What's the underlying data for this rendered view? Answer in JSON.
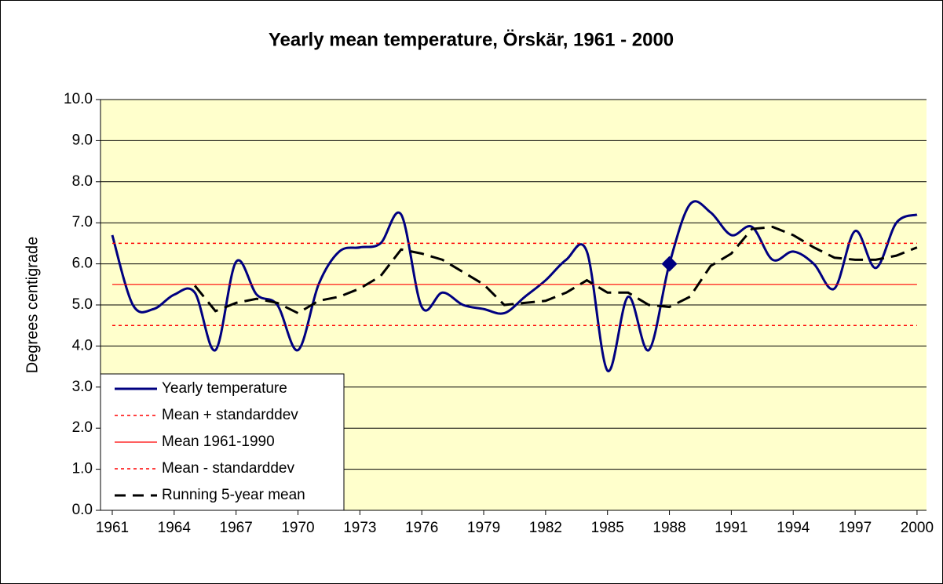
{
  "chart_data": {
    "type": "line",
    "title": "Yearly mean temperature, Örskär, 1961 - 2000",
    "y_label": "Degrees centigrade",
    "x": [
      1961,
      1962,
      1963,
      1964,
      1965,
      1966,
      1967,
      1968,
      1969,
      1970,
      1971,
      1972,
      1973,
      1974,
      1975,
      1976,
      1977,
      1978,
      1979,
      1980,
      1981,
      1982,
      1983,
      1984,
      1985,
      1986,
      1987,
      1988,
      1989,
      1990,
      1991,
      1992,
      1993,
      1994,
      1995,
      1996,
      1997,
      1998,
      1999,
      2000
    ],
    "series": [
      {
        "name": "Yearly temperature",
        "color": "#000080",
        "style": "solid",
        "width": 3,
        "smooth": true,
        "values": [
          6.7,
          5.0,
          4.9,
          5.25,
          5.3,
          3.9,
          6.05,
          5.25,
          5.0,
          3.9,
          5.5,
          6.3,
          6.4,
          6.5,
          7.2,
          4.95,
          5.3,
          5.0,
          4.9,
          4.8,
          5.2,
          5.6,
          6.1,
          6.3,
          3.4,
          5.2,
          3.9,
          6.0,
          7.45,
          7.25,
          6.7,
          6.9,
          6.1,
          6.3,
          6.0,
          5.4,
          6.8,
          5.9,
          7.0,
          7.2
        ]
      },
      {
        "name": "Mean + standarddev",
        "color": "#ff0000",
        "style": "dotted",
        "width": 1.5,
        "x": [
          1961,
          2000
        ],
        "values": [
          6.5,
          6.5
        ]
      },
      {
        "name": "Mean 1961-1990",
        "color": "#ff0000",
        "style": "solid",
        "width": 1.2,
        "x": [
          1961,
          2000
        ],
        "values": [
          5.5,
          5.5
        ]
      },
      {
        "name": "Mean - standarddev",
        "color": "#ff0000",
        "style": "dotted",
        "width": 1.5,
        "x": [
          1961,
          2000
        ],
        "values": [
          4.5,
          4.5
        ]
      },
      {
        "name": "Running 5-year mean",
        "color": "#000000",
        "style": "dashed",
        "width": 3,
        "values": [
          null,
          null,
          null,
          null,
          5.47,
          4.85,
          5.05,
          5.15,
          5.05,
          4.8,
          5.1,
          5.2,
          5.4,
          5.7,
          6.35,
          6.25,
          6.1,
          5.8,
          5.5,
          5.0,
          5.05,
          5.1,
          5.3,
          5.6,
          5.3,
          5.3,
          5.0,
          4.95,
          5.2,
          5.95,
          6.25,
          6.85,
          6.9,
          6.7,
          6.4,
          6.15,
          6.1,
          6.1,
          6.2,
          6.4
        ]
      }
    ],
    "highlight": {
      "x": 1988,
      "value": 6.0,
      "color": "#000080"
    },
    "xlim": [
      1960.43,
      2000.46
    ],
    "xticks": [
      1961,
      1964,
      1967,
      1970,
      1973,
      1976,
      1979,
      1982,
      1985,
      1988,
      1991,
      1994,
      1997,
      2000
    ],
    "ylim": [
      0,
      10
    ],
    "yticks": [
      {
        "value": 0,
        "label": "0.0"
      },
      {
        "value": 1,
        "label": "1.0"
      },
      {
        "value": 2,
        "label": "2.0"
      },
      {
        "value": 3,
        "label": "3.0"
      },
      {
        "value": 4,
        "label": "4.0"
      },
      {
        "value": 5,
        "label": "5.0"
      },
      {
        "value": 6,
        "label": "6.0"
      },
      {
        "value": 7,
        "label": "7.0"
      },
      {
        "value": 8,
        "label": "8.0"
      },
      {
        "value": 9,
        "label": "9.0"
      },
      {
        "value": 10,
        "label": "10.0"
      }
    ],
    "grid": true,
    "plot_background": "#ffffcc",
    "legend": "lower left"
  }
}
